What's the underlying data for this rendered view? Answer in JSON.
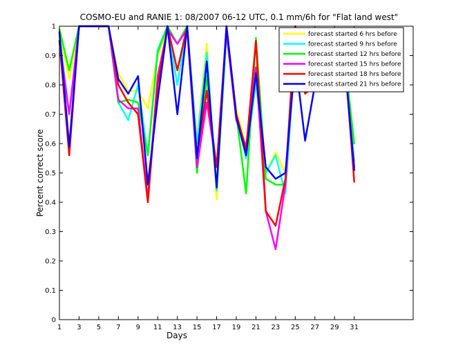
{
  "chart_data": {
    "type": "line",
    "title": "COSMO-EU and RANIE 1: 08/2007 06-12 UTC, 0.1 mm/6h for \"Flat land west\"",
    "xlabel": "Days",
    "ylabel": "Percent correct score",
    "xlim": [
      1,
      37
    ],
    "ylim": [
      0,
      1
    ],
    "xticks": [
      1,
      3,
      5,
      7,
      9,
      11,
      13,
      15,
      17,
      19,
      21,
      23,
      25,
      27,
      29,
      31
    ],
    "yticks": [
      0,
      0.1,
      0.2,
      0.3,
      0.4,
      0.5,
      0.6,
      0.7,
      0.8,
      0.9,
      1
    ],
    "ytick_labels": [
      "0",
      "0.1",
      "0.2",
      "0.3",
      "0.4",
      "0.5",
      "0.6",
      "0.7",
      "0.8",
      "0.9",
      "1"
    ],
    "legend_position": "top-right",
    "grid": false,
    "series": [
      {
        "name": "forecast started 6 hrs before",
        "color": "#ffff00",
        "x": [
          1,
          2,
          3,
          4,
          5,
          6,
          7,
          8,
          9,
          10,
          11,
          12,
          13,
          14,
          15,
          16,
          17,
          18,
          19,
          20,
          21,
          22,
          23,
          24,
          25,
          26,
          27,
          28,
          29,
          30,
          31
        ],
        "y": [
          0.98,
          0.82,
          1,
          1,
          1,
          1,
          0.84,
          0.78,
          0.78,
          0.72,
          0.9,
          1,
          0.8,
          1,
          0.62,
          0.94,
          0.41,
          0.98,
          0.72,
          0.58,
          0.87,
          0.5,
          0.57,
          0.5,
          0.88,
          0.85,
          0.8,
          0.88,
          0.97,
          0.9,
          0.79
        ]
      },
      {
        "name": "forecast started 9 hrs before",
        "color": "#00ffff",
        "x": [
          1,
          2,
          3,
          4,
          5,
          6,
          7,
          8,
          9,
          10,
          11,
          12,
          13,
          14,
          15,
          16,
          17,
          18,
          19,
          20,
          21,
          22,
          23,
          24,
          25,
          26,
          27,
          28,
          29,
          30,
          31
        ],
        "y": [
          0.97,
          0.7,
          1,
          1,
          1,
          1,
          0.74,
          0.68,
          0.8,
          0.56,
          0.92,
          1,
          0.8,
          1,
          0.6,
          0.91,
          0.44,
          0.97,
          0.7,
          0.55,
          0.81,
          0.5,
          0.56,
          0.43,
          0.92,
          0.89,
          0.83,
          0.87,
          0.96,
          0.89,
          0.54
        ]
      },
      {
        "name": "forecast started 12 hrs before",
        "color": "#00ff00",
        "x": [
          1,
          2,
          3,
          4,
          5,
          6,
          7,
          8,
          9,
          10,
          11,
          12,
          13,
          14,
          15,
          16,
          17,
          18,
          19,
          20,
          21,
          22,
          23,
          24,
          25,
          26,
          27,
          28,
          29,
          30,
          31
        ],
        "y": [
          0.99,
          0.85,
          1,
          1,
          1,
          1,
          0.74,
          0.75,
          0.74,
          0.56,
          0.91,
          1,
          0.94,
          1,
          0.5,
          0.83,
          0.45,
          1,
          0.7,
          0.43,
          0.96,
          0.48,
          0.46,
          0.46,
          0.96,
          0.98,
          0.82,
          0.88,
          0.97,
          0.9,
          0.6
        ]
      },
      {
        "name": "forecast started 15 hrs before",
        "color": "#ff00ff",
        "x": [
          1,
          2,
          3,
          4,
          5,
          6,
          7,
          8,
          9,
          10,
          11,
          12,
          13,
          14,
          15,
          16,
          17,
          18,
          19,
          20,
          21,
          22,
          23,
          24,
          25,
          26,
          27,
          28,
          29,
          30,
          31
        ],
        "y": [
          0.95,
          0.7,
          1,
          1,
          1,
          1,
          0.75,
          0.72,
          0.72,
          0.41,
          0.83,
          0.99,
          0.94,
          0.99,
          0.52,
          0.74,
          0.52,
          0.98,
          0.68,
          0.59,
          0.86,
          0.37,
          0.24,
          0.46,
          0.95,
          0.85,
          0.82,
          0.88,
          0.97,
          0.88,
          0.52
        ]
      },
      {
        "name": "forecast started 18 hrs before",
        "color": "#ff0000",
        "x": [
          1,
          2,
          3,
          4,
          5,
          6,
          7,
          8,
          9,
          10,
          11,
          12,
          13,
          14,
          15,
          16,
          17,
          18,
          19,
          20,
          21,
          22,
          23,
          24,
          25,
          26,
          27,
          28,
          29,
          30,
          31
        ],
        "y": [
          0.95,
          0.56,
          1,
          1,
          1,
          1,
          0.8,
          0.74,
          0.7,
          0.4,
          0.8,
          1,
          0.85,
          1,
          0.56,
          0.78,
          0.52,
          1,
          0.7,
          0.58,
          0.95,
          0.37,
          0.32,
          0.48,
          1,
          0.77,
          0.8,
          0.88,
          0.97,
          0.91,
          0.47
        ]
      },
      {
        "name": "forecast started 21 hrs before",
        "color": "#0000ff",
        "x": [
          1,
          2,
          3,
          4,
          5,
          6,
          7,
          8,
          9,
          10,
          11,
          12,
          13,
          14,
          15,
          16,
          17,
          18,
          19,
          20,
          21,
          22,
          23,
          24,
          25,
          26,
          27,
          28,
          29,
          30,
          31
        ],
        "y": [
          0.98,
          0.59,
          1,
          1,
          1,
          1,
          0.82,
          0.77,
          0.83,
          0.46,
          0.75,
          1,
          0.7,
          1,
          0.55,
          0.88,
          0.45,
          1,
          0.69,
          0.56,
          0.84,
          0.52,
          0.48,
          0.5,
          0.89,
          0.61,
          0.8,
          0.88,
          0.97,
          0.9,
          0.51
        ]
      }
    ]
  }
}
